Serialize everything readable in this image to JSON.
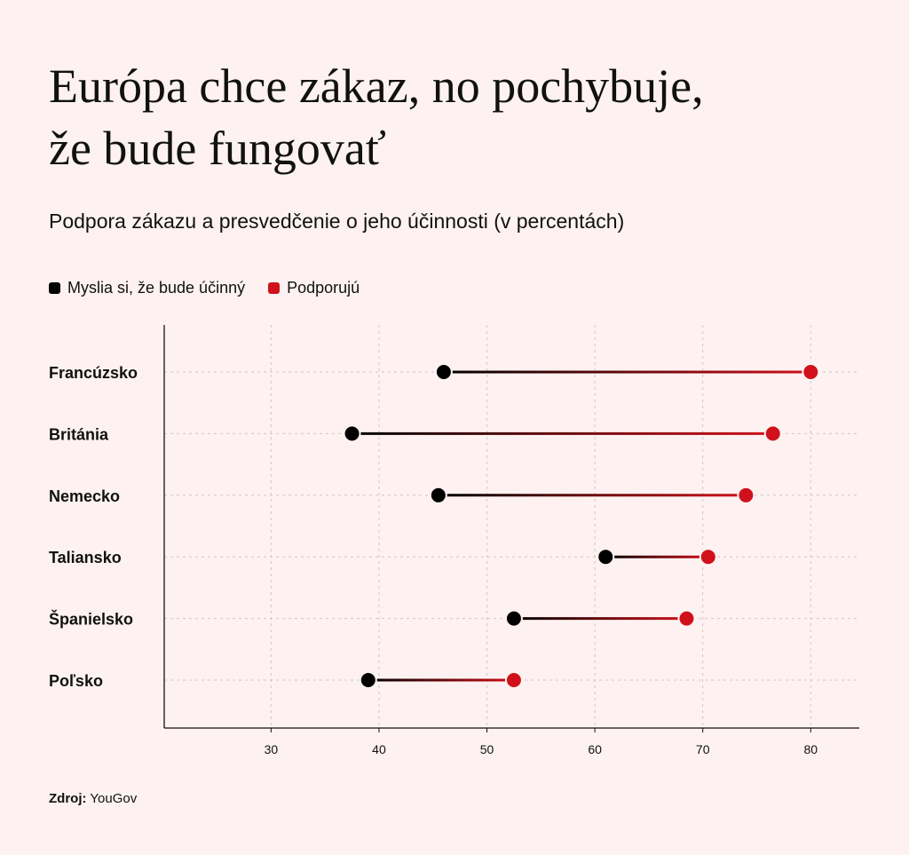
{
  "title_lines": [
    "Európa chce zákaz, no pochybuje,",
    "že bude fungovať"
  ],
  "subtitle": "Podpora zákazu a presvedčenie o jeho účinnosti (v percentách)",
  "source": {
    "label": "Zdroj:",
    "value": "YouGov"
  },
  "colors": {
    "background": "#fdf2f1",
    "effective": "#000000",
    "support": "#d0111b",
    "grid": "#cfc6c6"
  },
  "chart_data": {
    "type": "dumbbell",
    "categories": [
      "Francúzsko",
      "Británia",
      "Nemecko",
      "Taliansko",
      "Španielsko",
      "Poľsko"
    ],
    "series": [
      {
        "name": "Myslia si, že bude účinný",
        "color": "#000000",
        "values": [
          46,
          37.5,
          45.5,
          61,
          52.5,
          39
        ]
      },
      {
        "name": "Podporujú",
        "color": "#d0111b",
        "values": [
          80,
          76.5,
          74,
          70.5,
          68.5,
          52.5
        ]
      }
    ],
    "xticks": [
      30,
      40,
      50,
      60,
      70,
      80
    ],
    "xlim": [
      20.1,
      84.5
    ],
    "grid": true,
    "legend_position": "top-left"
  }
}
